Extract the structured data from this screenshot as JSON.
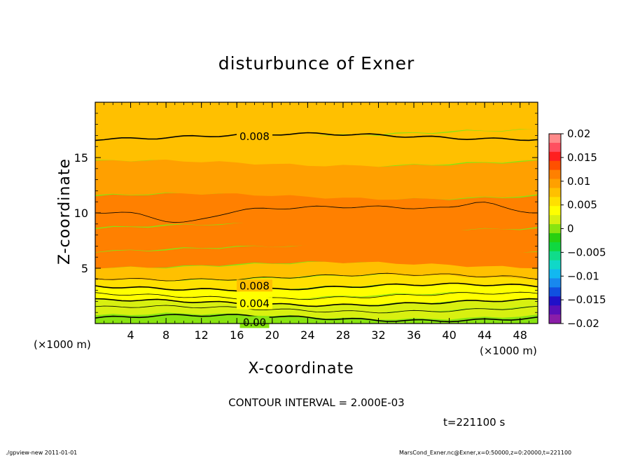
{
  "chart_data": {
    "type": "contour",
    "title": "disturbunce of Exner",
    "xlabel": "X-coordinate",
    "ylabel": "Z-coordinate",
    "x_unit": "(×1000 m)",
    "x_ticks": [
      4,
      8,
      12,
      16,
      20,
      24,
      28,
      32,
      36,
      40,
      44,
      48
    ],
    "y_ticks": [
      5,
      10,
      15
    ],
    "xlim": [
      0,
      50
    ],
    "ylim": [
      0,
      20
    ],
    "contour_labels": [
      "0.008",
      "0.008",
      "0.004",
      "0.00"
    ],
    "contour_interval_text": "CONTOUR INTERVAL = 2.000E-03",
    "time_text": "t=221100 s",
    "colorbar": {
      "ticks": [
        "0.02",
        "0.015",
        "0.01",
        "0.005",
        "0",
        "−0.005",
        "−0.01",
        "−0.015",
        "−0.02"
      ],
      "range": [
        -0.02,
        0.02
      ],
      "colors": [
        "#8a1ea8",
        "#5a10b8",
        "#2010c8",
        "#1050e0",
        "#1888ee",
        "#12b8f0",
        "#10d8c8",
        "#10dc8a",
        "#10d840",
        "#28d010",
        "#88e410",
        "#d8f010",
        "#ffff00",
        "#ffe000",
        "#ffc000",
        "#ffa000",
        "#ff8000",
        "#ff5000",
        "#ff2020",
        "#ff5060",
        "#ff8a8a"
      ]
    },
    "fields": [
      {
        "z": 0.3,
        "value": 0.0
      },
      {
        "z": 1.0,
        "value": 0.001
      },
      {
        "z": 1.6,
        "value": 0.002
      },
      {
        "z": 2.2,
        "value": 0.003
      },
      {
        "z": 2.9,
        "value": 0.004
      },
      {
        "z": 3.7,
        "value": 0.006
      },
      {
        "z": 4.6,
        "value": 0.008
      },
      {
        "z": 6.0,
        "value": 0.0105
      },
      {
        "z": 7.5,
        "value": 0.0115
      },
      {
        "z": 10.0,
        "value": 0.0105
      },
      {
        "z": 13.0,
        "value": 0.0095
      },
      {
        "z": 16.0,
        "value": 0.0085
      },
      {
        "z": 18.5,
        "value": 0.0075
      }
    ]
  },
  "footer": {
    "left": "./gpview-new   2011-01-01",
    "right": "MarsCond_Exner.nc@Exner,x=0:50000,z=0:20000,t=221100"
  },
  "colors": {
    "plot_low": "#18c818",
    "plot_mid": "#ffa000",
    "plot_top": "#ffff00"
  }
}
